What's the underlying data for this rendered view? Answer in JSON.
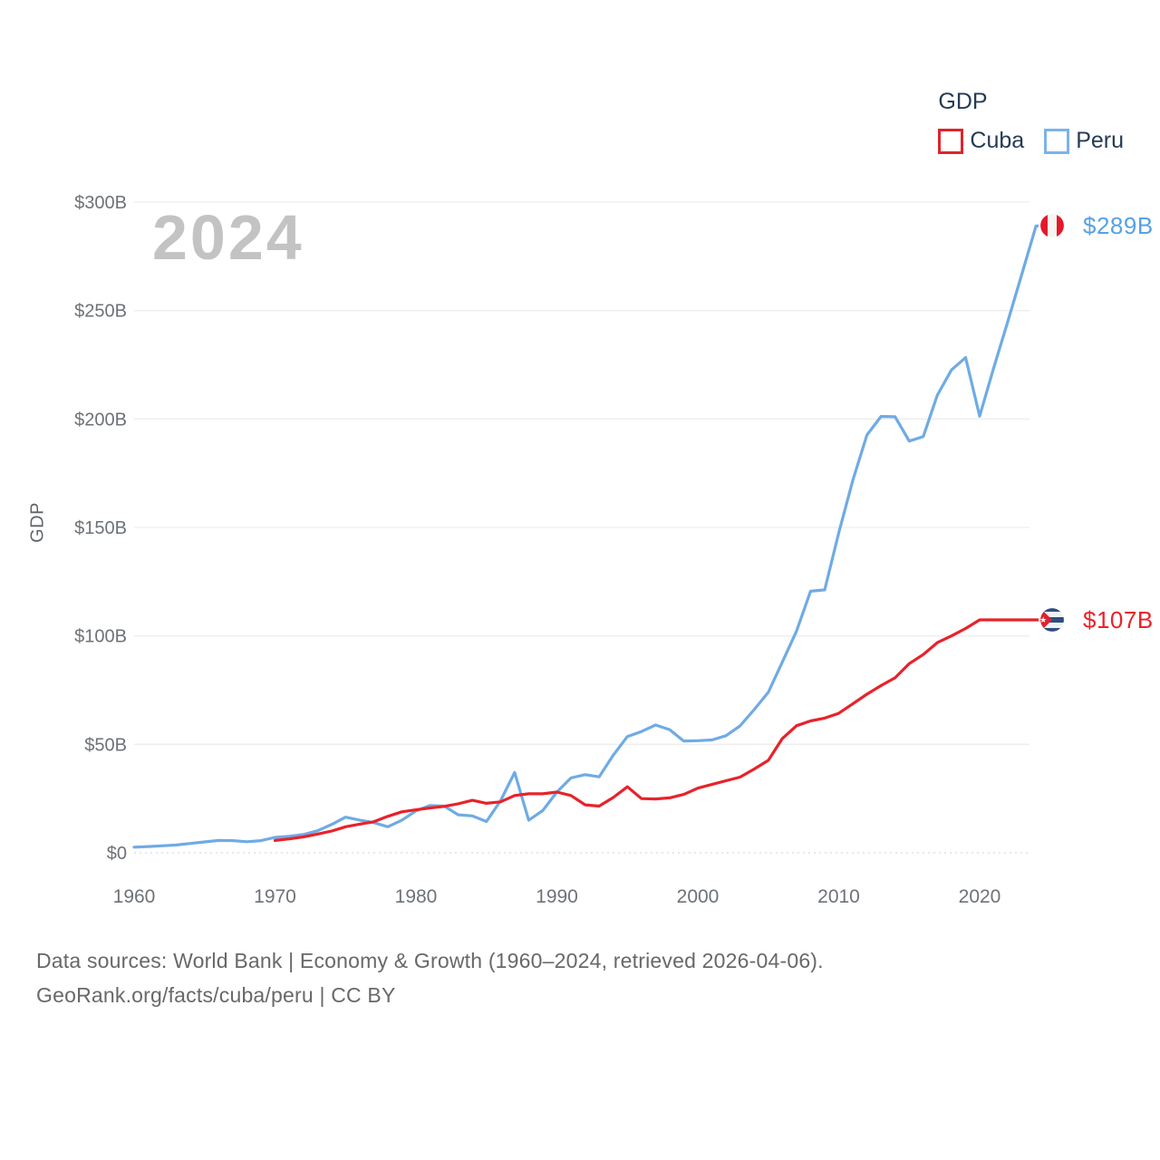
{
  "legend": {
    "title": "GDP",
    "items": [
      {
        "label": "Cuba",
        "color": "#e8222a"
      },
      {
        "label": "Peru",
        "color": "#7db3ea"
      }
    ]
  },
  "watermark": "2024",
  "end_labels": {
    "peru": "$289B",
    "cuba": "$107B"
  },
  "footer": {
    "line1": "Data sources: World Bank | Economy & Growth (1960–2024, retrieved 2026-04-06).",
    "line2": "GeoRank.org/facts/cuba/peru | CC BY"
  },
  "chart_data": {
    "type": "line",
    "title": "GDP",
    "ylabel": "GDP",
    "xlabel": "",
    "x_start": 1960,
    "x_end": 2024,
    "ylim": [
      0,
      300
    ],
    "grid": "horizontal",
    "legend_position": "top-right",
    "yticks": [
      {
        "value": 0,
        "label": "$0"
      },
      {
        "value": 50,
        "label": "$50B"
      },
      {
        "value": 100,
        "label": "$100B"
      },
      {
        "value": 150,
        "label": "$150B"
      },
      {
        "value": 200,
        "label": "$200B"
      },
      {
        "value": 250,
        "label": "$250B"
      },
      {
        "value": 300,
        "label": "$300B"
      }
    ],
    "xticks": [
      1960,
      1970,
      1980,
      1990,
      2000,
      2010,
      2020
    ],
    "series": [
      {
        "name": "Peru",
        "color": "#6fabe4",
        "start_year": 1960,
        "end_label": "$289B",
        "end_value": 289,
        "values": [
          2.6,
          2.9,
          3.2,
          3.6,
          4.3,
          5.0,
          5.7,
          5.6,
          5.1,
          5.6,
          7.1,
          7.6,
          8.4,
          10.1,
          13.0,
          16.4,
          15.1,
          13.9,
          12.0,
          15.0,
          19.3,
          21.8,
          21.5,
          17.5,
          17.0,
          14.4,
          24.0,
          37.0,
          15.0,
          19.5,
          28.0,
          34.5,
          36.0,
          35.0,
          45.0,
          53.6,
          55.9,
          58.9,
          56.8,
          51.5,
          51.7,
          52.0,
          54.0,
          58.5,
          66.0,
          74.0,
          88.0,
          102.2,
          120.6,
          121.2,
          147.5,
          171.8,
          192.6,
          201.2,
          201.0,
          189.8,
          191.9,
          211.0,
          222.6,
          228.3,
          201.3,
          223.7,
          245.0,
          267.0,
          289.0
        ]
      },
      {
        "name": "Cuba",
        "color": "#e8222a",
        "start_year": 1970,
        "end_label": "$107B",
        "end_value": 107,
        "values": [
          5.7,
          6.4,
          7.3,
          8.6,
          10.0,
          12.0,
          13.2,
          14.3,
          16.8,
          18.9,
          19.8,
          20.7,
          21.4,
          22.6,
          24.2,
          22.8,
          23.5,
          26.4,
          27.2,
          27.2,
          28.0,
          26.4,
          22.1,
          21.5,
          25.5,
          30.4,
          25.0,
          24.8,
          25.3,
          26.9,
          29.8,
          31.5,
          33.2,
          34.9,
          38.6,
          42.6,
          52.7,
          58.6,
          60.8,
          62.1,
          64.3,
          68.7,
          73.1,
          77.1,
          80.7,
          87.2,
          91.4,
          96.9,
          100.0,
          103.4,
          107.4,
          107.4,
          107.4,
          107.4,
          107.4
        ]
      }
    ]
  }
}
